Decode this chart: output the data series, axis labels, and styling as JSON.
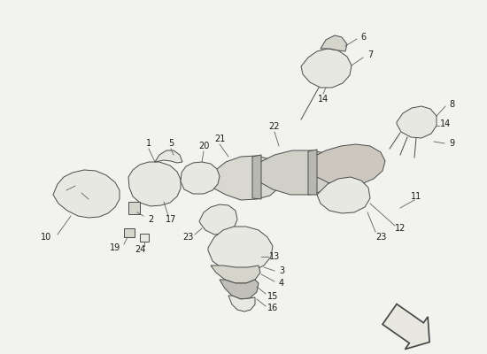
{
  "bg_color": "#f2f2ee",
  "line_color": "#4a4a4a",
  "fill_light": "#e8e8e2",
  "fill_mid": "#d5d5cc",
  "fill_dark": "#c0c0b8",
  "label_fs": 7,
  "label_color": "#1a1a1a",
  "leader_color": "#606060",
  "leader_lw": 0.6,
  "part_lw": 0.7,
  "arrow_fill": "#e8e8e0",
  "arrow_edge": "#555555"
}
